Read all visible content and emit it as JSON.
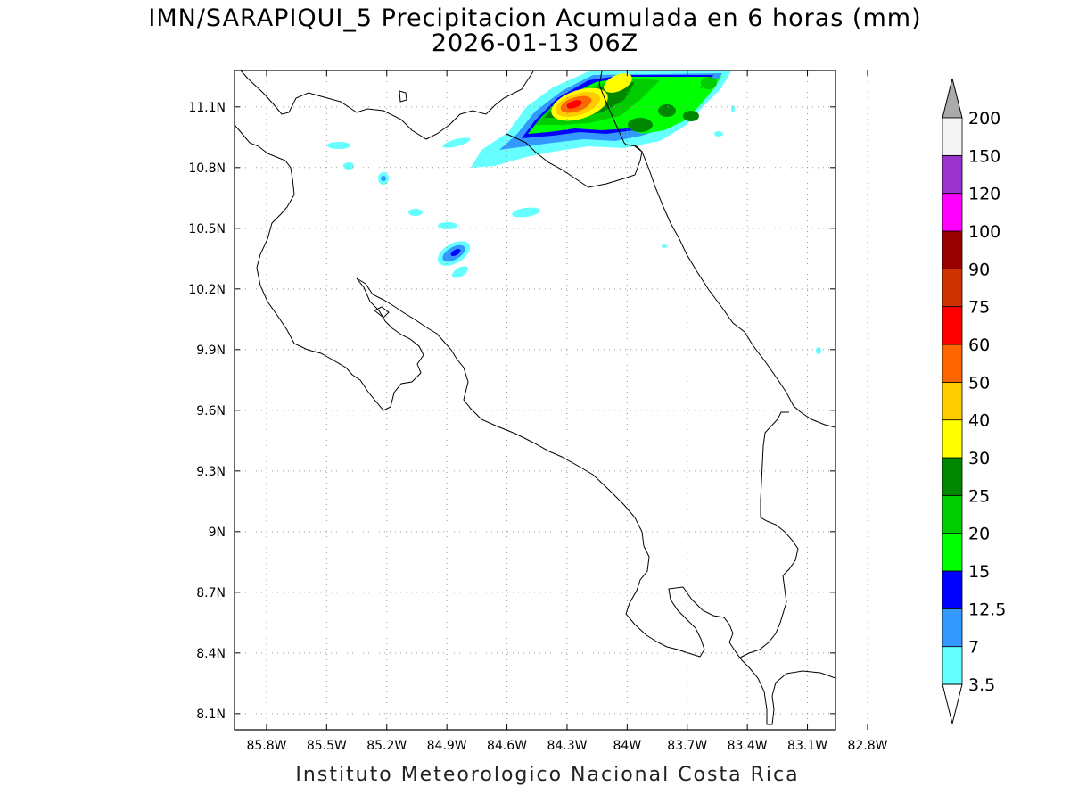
{
  "title": {
    "line1": "IMN/SARAPIQUI_5 Precipitacion Acumulada en 6 horas (mm)",
    "line2": "2026-01-13 06Z"
  },
  "credit": "Instituto Meteorologico Nacional Costa Rica",
  "axes": {
    "lon_ticks": [
      "85.8W",
      "85.5W",
      "85.2W",
      "84.9W",
      "84.6W",
      "84.3W",
      "84W",
      "83.7W",
      "83.4W",
      "83.1W",
      "82.8W"
    ],
    "lon_values": [
      -85.8,
      -85.5,
      -85.2,
      -84.9,
      -84.6,
      -84.3,
      -84.0,
      -83.7,
      -83.4,
      -83.1,
      -82.8
    ],
    "lat_ticks": [
      "11.1N",
      "10.8N",
      "10.5N",
      "10.2N",
      "9.9N",
      "9.6N",
      "9.3N",
      "9N",
      "8.7N",
      "8.4N",
      "8.1N"
    ],
    "lat_values": [
      11.1,
      10.8,
      10.5,
      10.2,
      9.9,
      9.6,
      9.3,
      9.0,
      8.7,
      8.4,
      8.1
    ],
    "lon_range": [
      -85.96,
      -82.96
    ],
    "lat_range": [
      8.02,
      11.28
    ],
    "grid": true
  },
  "colorbar": {
    "labels": [
      "3.5",
      "7",
      "12.5",
      "15",
      "20",
      "25",
      "30",
      "40",
      "50",
      "60",
      "75",
      "90",
      "100",
      "120",
      "150",
      "200"
    ],
    "colors": [
      "#66ffff",
      "#3399ff",
      "#0000ff",
      "#00ff00",
      "#00cc00",
      "#008800",
      "#ffff00",
      "#ffcc00",
      "#ff6600",
      "#ff0000",
      "#cc3300",
      "#990000",
      "#ff00ff",
      "#9933cc",
      "#f5f5f5",
      "#aaaaaa"
    ]
  },
  "colors": {
    "coast": "#000000",
    "grid": "#999999"
  }
}
